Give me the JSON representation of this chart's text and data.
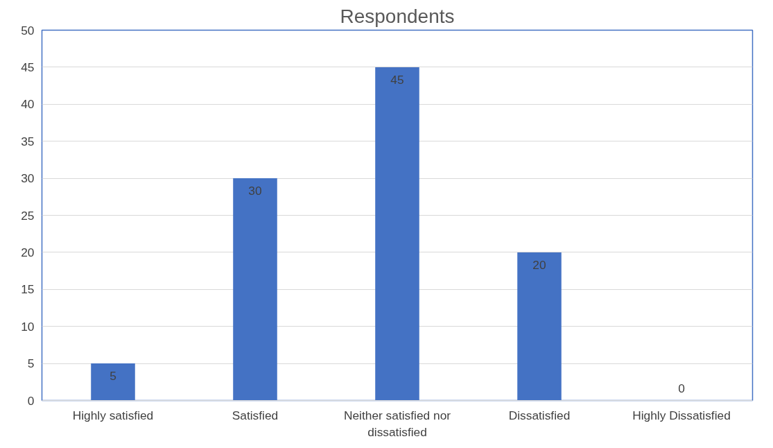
{
  "chart_data": {
    "type": "bar",
    "title": "Respondents",
    "categories": [
      "Highly satisfied",
      "Satisfied",
      "Neither satisfied nor dissatisfied",
      "Dissatisfied",
      "Highly Dissatisfied"
    ],
    "values": [
      5,
      30,
      45,
      20,
      0
    ],
    "color": "#4472c4",
    "ylim": [
      0,
      50
    ],
    "yticks": [
      0,
      5,
      10,
      15,
      20,
      25,
      30,
      35,
      40,
      45,
      50
    ],
    "grid": "y",
    "data_labels": true
  }
}
